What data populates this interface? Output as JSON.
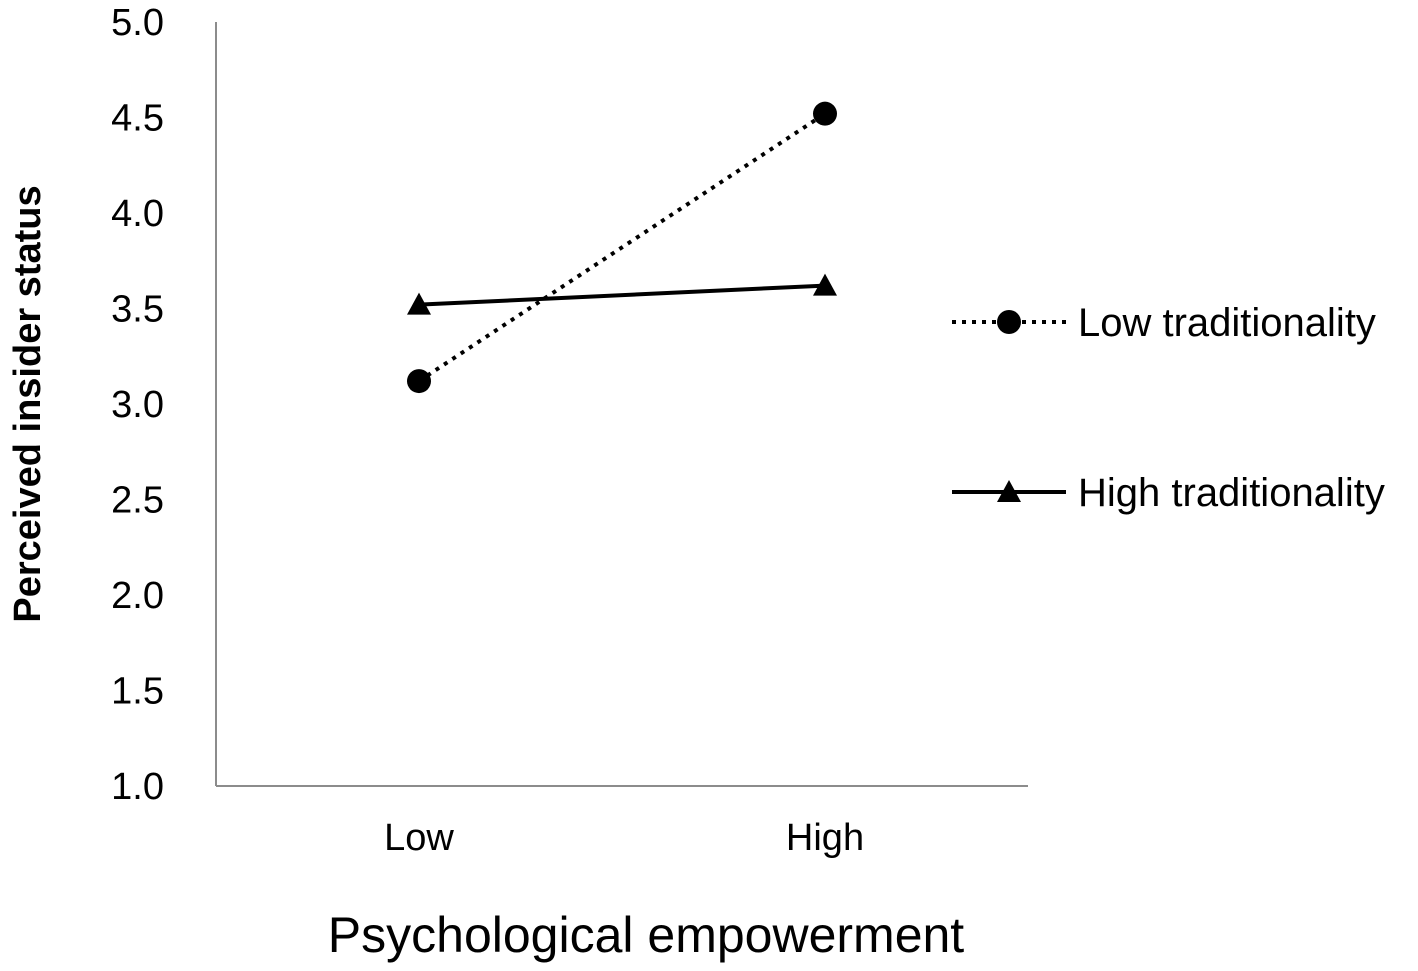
{
  "chart_data": {
    "type": "line",
    "title": "",
    "xlabel": "Psychological empowerment",
    "ylabel": "Perceived insider status",
    "categories": [
      "Low",
      "High"
    ],
    "ylim": [
      1.0,
      5.0
    ],
    "yticks": [
      "1.0",
      "1.5",
      "2.0",
      "2.5",
      "3.0",
      "3.5",
      "4.0",
      "4.5",
      "5.0"
    ],
    "grid": false,
    "legend_position": "right",
    "series": [
      {
        "name": "Low traditionality",
        "values": [
          3.12,
          4.52
        ],
        "line_style": "dotted",
        "marker": "circle",
        "color": "#000000"
      },
      {
        "name": "High traditionality",
        "values": [
          3.52,
          3.62
        ],
        "line_style": "solid",
        "marker": "triangle",
        "color": "#000000"
      }
    ]
  }
}
